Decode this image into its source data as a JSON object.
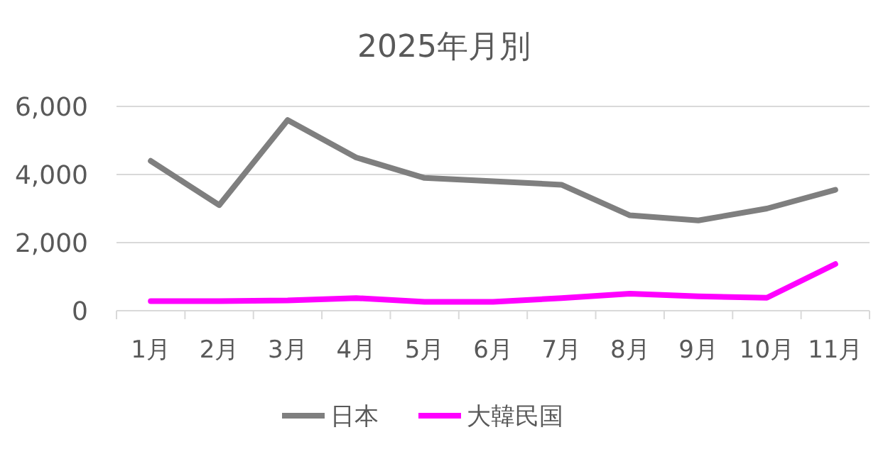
{
  "chart_data": {
    "type": "line",
    "title": "2025年月別",
    "categories": [
      "1月",
      "2月",
      "3月",
      "4月",
      "5月",
      "6月",
      "7月",
      "8月",
      "9月",
      "10月",
      "11月"
    ],
    "series": [
      {
        "name": "日本",
        "color": "#7f7f7f",
        "values": [
          4400,
          3100,
          5600,
          4500,
          3900,
          3800,
          3700,
          2800,
          2650,
          3000,
          3550
        ]
      },
      {
        "name": "大韓民国",
        "color": "#ff00ff",
        "values": [
          280,
          280,
          300,
          370,
          260,
          260,
          370,
          500,
          420,
          380,
          1370
        ]
      }
    ],
    "ylim": [
      0,
      6000
    ],
    "yticks": [
      {
        "value": 0,
        "label": "0"
      },
      {
        "value": 2000,
        "label": "2,000"
      },
      {
        "value": 4000,
        "label": "4,000"
      },
      {
        "value": 6000,
        "label": "6,000"
      }
    ],
    "grid": "y",
    "legend": "bottom",
    "marker": "none",
    "line_style": "solid"
  }
}
